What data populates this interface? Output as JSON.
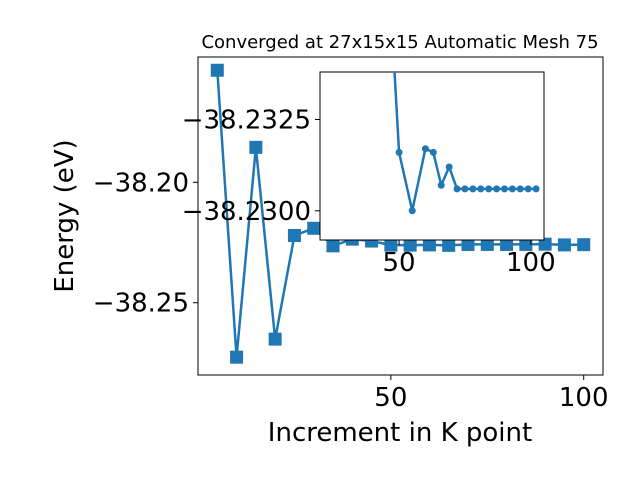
{
  "chart_data": [
    {
      "type": "line",
      "title": "Converged at 27x15x15 Automatic Mesh 75",
      "xlabel": "Increment in K point",
      "ylabel": "Energy (eV)",
      "xlim": [
        0,
        105
      ],
      "ylim": [
        -38.28,
        -38.148
      ],
      "x_ticks": [
        50,
        100
      ],
      "x_tick_labels": [
        "50",
        "100"
      ],
      "y_ticks": [
        -38.25,
        -38.2
      ],
      "y_tick_labels": [
        "−38.25",
        "−38.20"
      ],
      "grid": false,
      "marker": "square",
      "color": "#1f77b4",
      "series": [
        {
          "x": [
            5,
            10,
            15,
            20,
            25,
            30,
            35,
            40,
            45,
            50,
            55,
            60,
            65,
            70,
            75,
            80,
            85,
            90,
            95,
            100
          ],
          "values": [
            -38.1535,
            -38.2726,
            -38.1855,
            -38.2651,
            -38.2221,
            -38.2191,
            -38.2264,
            -38.2236,
            -38.2244,
            -38.2261,
            -38.2261,
            -38.226,
            -38.2262,
            -38.2258,
            -38.2258,
            -38.2258,
            -38.2258,
            -38.2257,
            -38.226,
            -38.2259
          ]
        }
      ]
    },
    {
      "type": "line",
      "subtype": "inset",
      "xlim": [
        20,
        105
      ],
      "ylim": [
        -38.2292,
        -38.2338
      ],
      "x_ticks": [
        50,
        100
      ],
      "x_tick_labels": [
        "50",
        "100"
      ],
      "y_ticks": [
        -38.2325,
        -38.23
      ],
      "y_tick_labels": [
        "−38.2325",
        "−38.2300"
      ],
      "marker": "circle",
      "color": "#1f77b4",
      "series": [
        {
          "x": [
            45,
            50,
            55,
            60,
            63,
            66,
            69,
            72,
            75,
            78,
            81,
            84,
            87,
            90,
            93,
            96,
            99,
            102
          ],
          "values": [
            -38.238,
            -38.2316,
            -38.23,
            -38.2317,
            -38.2316,
            -38.2307,
            -38.2312,
            -38.2306,
            -38.2306,
            -38.2306,
            -38.2306,
            -38.2306,
            -38.2306,
            -38.2306,
            -38.2306,
            -38.2306,
            -38.2306,
            -38.2306
          ]
        }
      ]
    }
  ]
}
